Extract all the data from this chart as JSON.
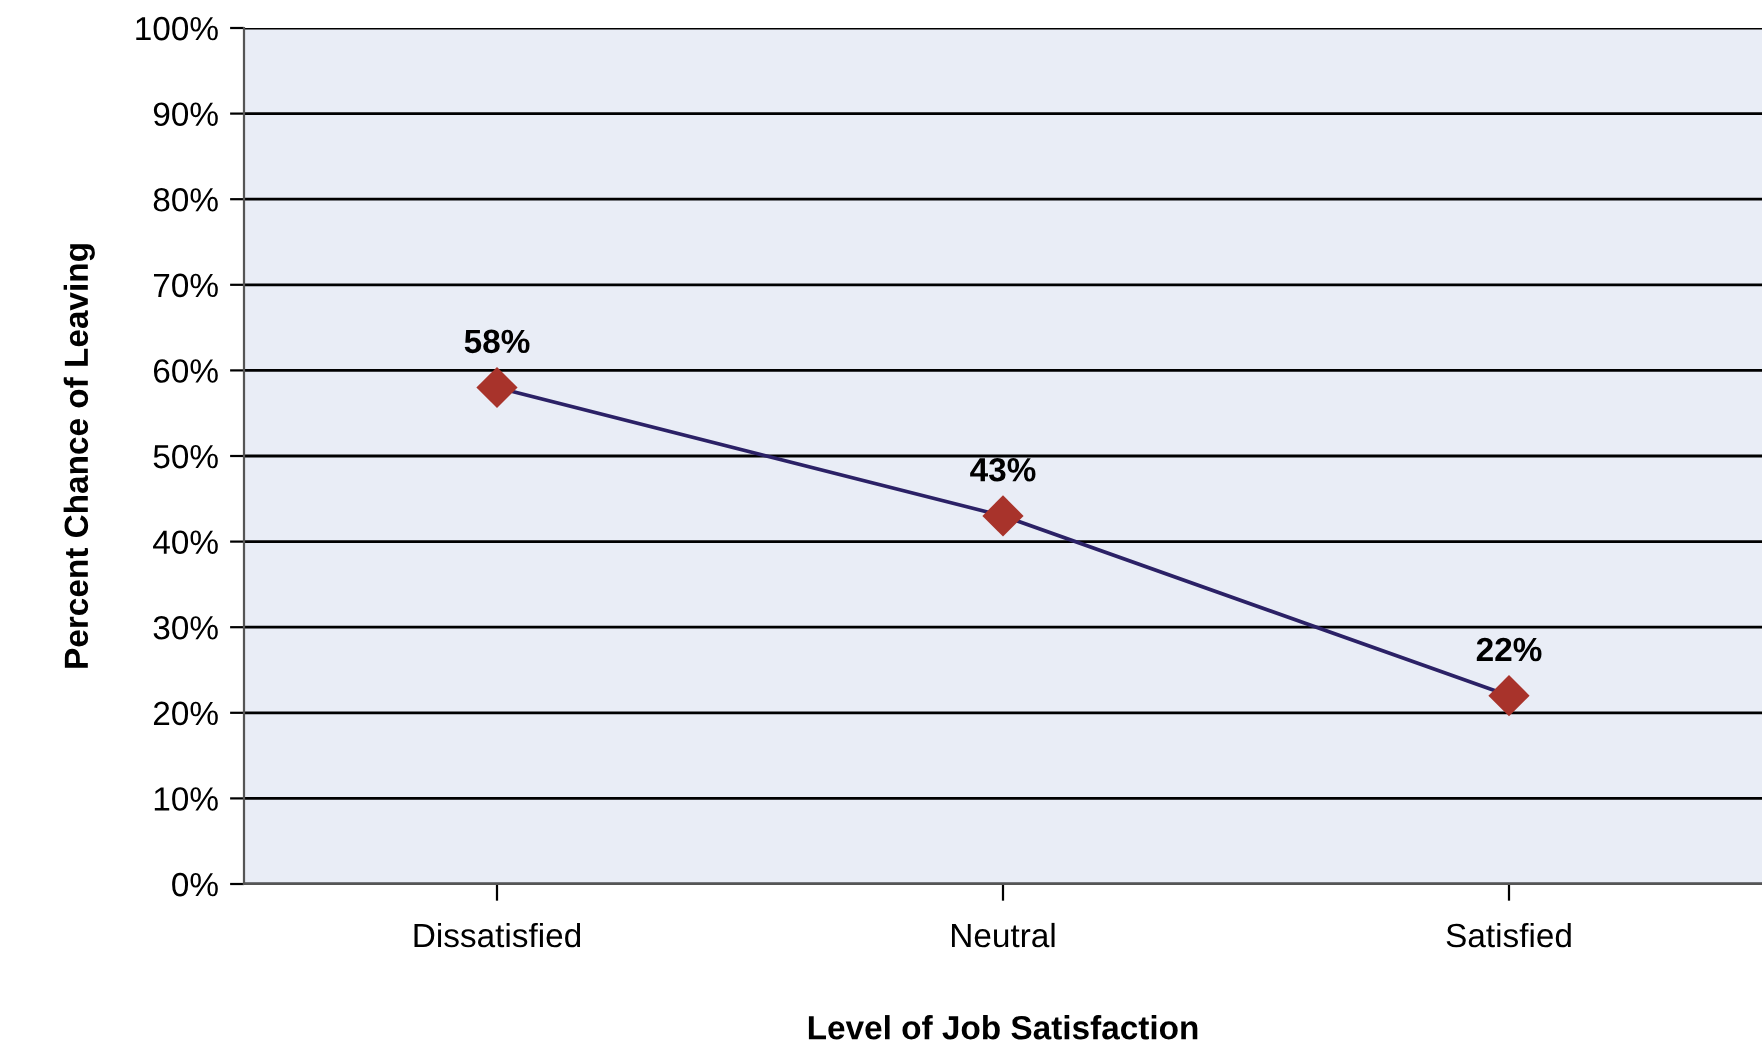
{
  "chart_data": {
    "type": "line",
    "xlabel": "Level of Job Satisfaction",
    "ylabel": "Percent Chance of Leaving",
    "categories": [
      "Dissatisfied",
      "Neutral",
      "Satisfied"
    ],
    "series": [
      {
        "color": "#2b2166",
        "colors": [
          "#a8332b",
          "#a8332b",
          "#a8332b"
        ],
        "values": [
          58,
          43,
          22
        ],
        "value_labels": [
          "58%",
          "43%",
          "22%"
        ]
      }
    ],
    "ylim": [
      0,
      100
    ],
    "yticks": [
      {
        "value": 0,
        "label": "0%"
      },
      {
        "value": 10,
        "label": "10%"
      },
      {
        "value": 20,
        "label": "20%"
      },
      {
        "value": 30,
        "label": "30%"
      },
      {
        "value": 40,
        "label": "40%"
      },
      {
        "value": 50,
        "label": "50%"
      },
      {
        "value": 60,
        "label": "60%"
      },
      {
        "value": 70,
        "label": "70%"
      },
      {
        "value": 80,
        "label": "80%"
      },
      {
        "value": 90,
        "label": "90%"
      },
      {
        "value": 100,
        "label": "100%"
      }
    ],
    "grid": "y",
    "marker": "diamond",
    "line_style": "solid"
  }
}
